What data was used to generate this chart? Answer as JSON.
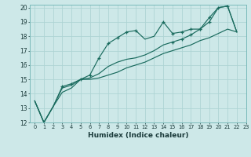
{
  "xlabel": "Humidex (Indice chaleur)",
  "bg_color": "#cde8e8",
  "line_color": "#1a6b5e",
  "grid_color": "#aed4d4",
  "xlim": [
    -0.5,
    23
  ],
  "ylim": [
    12,
    20.2
  ],
  "xticks": [
    0,
    1,
    2,
    3,
    4,
    5,
    6,
    7,
    8,
    9,
    10,
    11,
    12,
    13,
    14,
    15,
    16,
    17,
    18,
    19,
    20,
    21,
    22,
    23
  ],
  "yticks": [
    12,
    13,
    14,
    15,
    16,
    17,
    18,
    19,
    20
  ],
  "line1_x": [
    0,
    1,
    2,
    3,
    4,
    5,
    6,
    7,
    8,
    9,
    10,
    11,
    12,
    13,
    14,
    15,
    16,
    17,
    18,
    19,
    20,
    21,
    22
  ],
  "line1_y": [
    13.5,
    12.0,
    13.1,
    14.5,
    14.7,
    15.0,
    15.3,
    16.5,
    17.5,
    17.9,
    18.3,
    18.4,
    17.8,
    18.0,
    19.0,
    18.2,
    18.3,
    18.5,
    18.5,
    19.3,
    20.0,
    20.1,
    18.3
  ],
  "line2_x": [
    0,
    1,
    2,
    3,
    4,
    5,
    6,
    7,
    8,
    9,
    10,
    11,
    12,
    13,
    14,
    15,
    16,
    17,
    18,
    19,
    20,
    21,
    22
  ],
  "line2_y": [
    13.5,
    12.0,
    13.1,
    14.4,
    14.6,
    15.0,
    15.1,
    15.4,
    15.9,
    16.2,
    16.4,
    16.5,
    16.7,
    17.0,
    17.4,
    17.6,
    17.8,
    18.1,
    18.5,
    19.0,
    20.0,
    20.1,
    18.3
  ],
  "line3_x": [
    0,
    1,
    2,
    3,
    4,
    5,
    6,
    7,
    8,
    9,
    10,
    11,
    12,
    13,
    14,
    15,
    16,
    17,
    18,
    19,
    20,
    21,
    22
  ],
  "line3_y": [
    13.5,
    12.0,
    13.1,
    14.1,
    14.4,
    15.0,
    15.0,
    15.1,
    15.3,
    15.5,
    15.8,
    16.0,
    16.2,
    16.5,
    16.8,
    17.0,
    17.2,
    17.4,
    17.7,
    17.9,
    18.2,
    18.5,
    18.3
  ],
  "markers1_x": [
    3,
    4,
    5,
    6,
    7,
    8,
    9,
    10,
    11,
    14,
    15,
    16,
    17,
    18,
    19,
    20,
    21
  ],
  "markers1_y": [
    14.5,
    14.7,
    15.0,
    15.3,
    16.5,
    17.5,
    17.9,
    18.3,
    18.4,
    19.0,
    18.2,
    18.3,
    18.5,
    18.5,
    19.3,
    20.0,
    20.1
  ],
  "markers2_x": [
    15,
    16,
    17,
    18,
    19
  ],
  "markers2_y": [
    17.6,
    17.8,
    18.1,
    18.5,
    19.0
  ]
}
